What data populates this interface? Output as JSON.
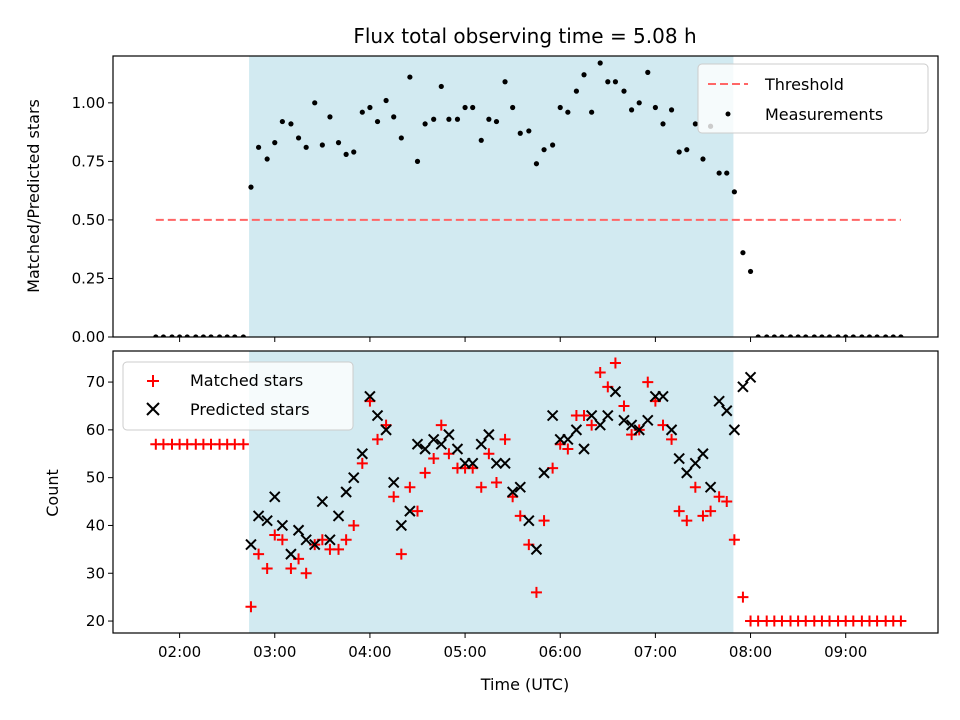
{
  "chart_data": [
    {
      "type": "scatter",
      "title": "Flux total observing time = 5.08 h",
      "xlabel": "",
      "ylabel": "Matched/Predicted stars",
      "x_unit": "time of day (UTC), decimal hours",
      "xlim": [
        1.3,
        9.97
      ],
      "ylim": [
        0,
        1.2
      ],
      "yticks": [
        "0.00",
        "0.25",
        "0.50",
        "0.75",
        "1.00"
      ],
      "xticks": [
        "02:00",
        "03:00",
        "04:00",
        "05:00",
        "06:00",
        "07:00",
        "08:00",
        "09:00"
      ],
      "shaded_interval": [
        2.73,
        7.82
      ],
      "shaded_color": "#add8e6",
      "threshold": {
        "name": "Threshold",
        "value": 0.5,
        "x_range": [
          1.75,
          9.58
        ],
        "color": "#ff6666",
        "style": "dashed"
      },
      "legend": {
        "placement": "top-right",
        "entries": [
          "Threshold",
          "Measurements"
        ]
      },
      "series": [
        {
          "name": "Measurements",
          "marker": "dot",
          "color": "#000000",
          "x": [
            1.75,
            1.83,
            1.92,
            2.0,
            2.08,
            2.17,
            2.25,
            2.33,
            2.42,
            2.5,
            2.58,
            2.67,
            2.75,
            2.83,
            2.92,
            3.0,
            3.08,
            3.17,
            3.25,
            3.33,
            3.42,
            3.5,
            3.58,
            3.67,
            3.75,
            3.83,
            3.92,
            4.0,
            4.08,
            4.17,
            4.25,
            4.33,
            4.42,
            4.5,
            4.58,
            4.67,
            4.75,
            4.83,
            4.92,
            5.0,
            5.08,
            5.17,
            5.25,
            5.33,
            5.42,
            5.5,
            5.58,
            5.67,
            5.75,
            5.83,
            5.92,
            6.0,
            6.08,
            6.17,
            6.25,
            6.33,
            6.42,
            6.5,
            6.58,
            6.67,
            6.75,
            6.83,
            6.92,
            7.0,
            7.08,
            7.17,
            7.25,
            7.33,
            7.42,
            7.5,
            7.58,
            7.67,
            7.75,
            7.83,
            7.92,
            8.0,
            8.08,
            8.17,
            8.25,
            8.33,
            8.42,
            8.5,
            8.58,
            8.67,
            8.75,
            8.83,
            8.92,
            9.0,
            9.08,
            9.17,
            9.25,
            9.33,
            9.42,
            9.5,
            9.58
          ],
          "y": [
            0,
            0,
            0,
            0,
            0,
            0,
            0,
            0,
            0,
            0,
            0,
            0,
            0.64,
            0.81,
            0.76,
            0.83,
            0.92,
            0.91,
            0.85,
            0.81,
            1.0,
            0.82,
            0.94,
            0.83,
            0.78,
            0.79,
            0.96,
            0.98,
            0.92,
            1.01,
            0.94,
            0.85,
            1.11,
            0.75,
            0.91,
            0.93,
            1.07,
            0.93,
            0.93,
            0.98,
            0.98,
            0.84,
            0.93,
            0.92,
            1.09,
            0.98,
            0.87,
            0.88,
            0.74,
            0.8,
            0.82,
            0.98,
            0.96,
            1.05,
            1.12,
            0.96,
            1.17,
            1.09,
            1.09,
            1.05,
            0.97,
            1.0,
            1.13,
            0.98,
            0.91,
            0.97,
            0.79,
            0.8,
            0.91,
            0.76,
            0.9,
            0.7,
            0.7,
            0.62,
            0.36,
            0.28,
            0,
            0,
            0,
            0,
            0,
            0,
            0,
            0,
            0,
            0,
            0,
            0,
            0,
            0,
            0,
            0,
            0,
            0,
            0
          ]
        }
      ]
    },
    {
      "type": "scatter",
      "title": "",
      "xlabel": "Time (UTC)",
      "ylabel": "Count",
      "x_unit": "time of day (UTC), decimal hours",
      "xlim": [
        1.3,
        9.97
      ],
      "ylim": [
        17.5,
        76.5
      ],
      "yticks": [
        "20",
        "30",
        "40",
        "50",
        "60",
        "70"
      ],
      "xticks": [
        "02:00",
        "03:00",
        "04:00",
        "05:00",
        "06:00",
        "07:00",
        "08:00",
        "09:00"
      ],
      "shaded_interval": [
        2.73,
        7.82
      ],
      "shaded_color": "#add8e6",
      "legend": {
        "placement": "top-left",
        "entries": [
          "Matched stars",
          "Predicted stars"
        ]
      },
      "series": [
        {
          "name": "Matched stars",
          "marker": "plus",
          "color": "#ff0000",
          "x": [
            1.75,
            1.83,
            1.92,
            2.0,
            2.08,
            2.17,
            2.25,
            2.33,
            2.42,
            2.5,
            2.58,
            2.67,
            2.75,
            2.83,
            2.92,
            3.0,
            3.08,
            3.17,
            3.25,
            3.33,
            3.42,
            3.5,
            3.58,
            3.67,
            3.75,
            3.83,
            3.92,
            4.0,
            4.08,
            4.17,
            4.25,
            4.33,
            4.42,
            4.5,
            4.58,
            4.67,
            4.75,
            4.83,
            4.92,
            5.0,
            5.08,
            5.17,
            5.25,
            5.33,
            5.42,
            5.5,
            5.58,
            5.67,
            5.75,
            5.83,
            5.92,
            6.0,
            6.08,
            6.17,
            6.25,
            6.33,
            6.42,
            6.5,
            6.58,
            6.67,
            6.75,
            6.83,
            6.92,
            7.0,
            7.08,
            7.17,
            7.25,
            7.33,
            7.42,
            7.5,
            7.58,
            7.67,
            7.75,
            7.83,
            7.92,
            8.0,
            8.08,
            8.17,
            8.25,
            8.33,
            8.42,
            8.5,
            8.58,
            8.67,
            8.75,
            8.83,
            8.92,
            9.0,
            9.08,
            9.17,
            9.25,
            9.33,
            9.42,
            9.5,
            9.58
          ],
          "y": [
            57,
            57,
            57,
            57,
            57,
            57,
            57,
            57,
            57,
            57,
            57,
            57,
            23,
            34,
            31,
            38,
            37,
            31,
            33,
            30,
            36,
            37,
            35,
            35,
            37,
            40,
            53,
            66,
            58,
            61,
            46,
            34,
            48,
            43,
            51,
            54,
            61,
            55,
            52,
            52,
            52,
            48,
            55,
            49,
            58,
            46,
            42,
            36,
            26,
            41,
            52,
            57,
            56,
            63,
            63,
            61,
            72,
            69,
            74,
            65,
            59,
            60,
            70,
            66,
            61,
            58,
            43,
            41,
            48,
            42,
            43,
            46,
            45,
            37,
            25,
            20,
            20,
            20,
            20,
            20,
            20,
            20,
            20,
            20,
            20,
            20,
            20,
            20,
            20,
            20,
            20,
            20,
            20,
            20,
            20
          ]
        },
        {
          "name": "Predicted stars",
          "marker": "cross",
          "color": "#000000",
          "x": [
            2.75,
            2.83,
            2.92,
            3.0,
            3.08,
            3.17,
            3.25,
            3.33,
            3.42,
            3.5,
            3.58,
            3.67,
            3.75,
            3.83,
            3.92,
            4.0,
            4.08,
            4.17,
            4.25,
            4.33,
            4.42,
            4.5,
            4.58,
            4.67,
            4.75,
            4.83,
            4.92,
            5.0,
            5.08,
            5.17,
            5.25,
            5.33,
            5.42,
            5.5,
            5.58,
            5.67,
            5.75,
            5.83,
            5.92,
            6.0,
            6.08,
            6.17,
            6.25,
            6.33,
            6.42,
            6.5,
            6.58,
            6.67,
            6.75,
            6.83,
            6.92,
            7.0,
            7.08,
            7.17,
            7.25,
            7.33,
            7.42,
            7.5,
            7.58,
            7.67,
            7.75,
            7.83,
            7.92,
            8.0
          ],
          "y": [
            36,
            42,
            41,
            46,
            40,
            34,
            39,
            37,
            36,
            45,
            37,
            42,
            47,
            50,
            55,
            67,
            63,
            60,
            49,
            40,
            43,
            57,
            56,
            58,
            57,
            59,
            56,
            53,
            53,
            57,
            59,
            53,
            53,
            47,
            48,
            41,
            35,
            51,
            63,
            58,
            58,
            60,
            56,
            63,
            61,
            63,
            68,
            62,
            61,
            60,
            62,
            67,
            67,
            60,
            54,
            51,
            53,
            55,
            48,
            66,
            64,
            60,
            69,
            71
          ]
        }
      ]
    }
  ]
}
